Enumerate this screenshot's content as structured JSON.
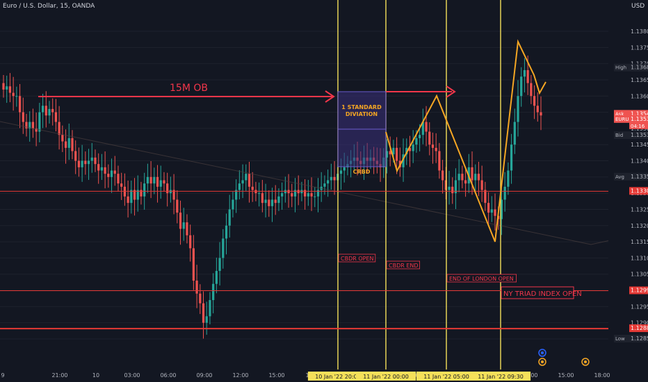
{
  "symbol_title": "Euro / U.S. Dollar, 15, OANDA",
  "currency": "USD",
  "colors": {
    "background": "#131722",
    "up": "#26a69a",
    "down": "#ef5350",
    "yellow_line": "#f5e05a",
    "red_line": "#e53935",
    "arrow": "#f2364a",
    "purple_box": "#3a2f7a",
    "orange": "#f5a623",
    "axis_text": "#b2b5be",
    "grid": "#1e222d"
  },
  "chart_data": {
    "type": "candlestick",
    "title": "Euro / U.S. Dollar, 15, OANDA",
    "ylim": [
      1.1275,
      1.1385
    ],
    "ytick_values": [
      1.1285,
      1.129,
      1.1295,
      1.13,
      1.1305,
      1.131,
      1.1315,
      1.132,
      1.1325,
      1.133,
      1.1335,
      1.134,
      1.1345,
      1.135,
      1.1355,
      1.136,
      1.1365,
      1.137,
      1.1375,
      1.138
    ],
    "ytick_labels": [
      "1.12850",
      "1.12900",
      "1.12950",
      "1.13000",
      "1.13050",
      "1.13100",
      "1.13150",
      "1.13200",
      "1.13250",
      "1.13300",
      "1.13350",
      "1.13400",
      "1.13450",
      "1.13500",
      "1.13550",
      "1.13600",
      "1.13650",
      "1.13700",
      "1.13750",
      "1.13800"
    ],
    "xtick_labels": [
      "9",
      "21:00",
      "10",
      "03:00",
      "06:00",
      "09:00",
      "12:00",
      "15:00",
      "18:00",
      "03:00",
      "12:00",
      "15:00",
      "18:00"
    ],
    "price_tags": [
      {
        "label": "High",
        "value": "1.13687",
        "price": 1.13687,
        "bg": "#1e222d",
        "fg": "#b2b5be"
      },
      {
        "label": "Ask",
        "value": "1.13544",
        "price": 1.13544,
        "bg": "#ef5350",
        "fg": "#ffffff"
      },
      {
        "label": "EURUSD",
        "value": "1.13538",
        "price": 1.13528,
        "bg": "#ef5350",
        "fg": "#ffffff",
        "sub": "04:16"
      },
      {
        "label": "Bid",
        "value": "1.13531",
        "price": 1.13478,
        "bg": "#1e222d",
        "fg": "#b2b5be"
      },
      {
        "label": "Avg",
        "value": "1.13350",
        "price": 1.1335,
        "bg": "#1e222d",
        "fg": "#b2b5be"
      },
      {
        "label": "",
        "value": "1.13306",
        "price": 1.13306,
        "bg": "#e53935",
        "fg": "#ffffff"
      },
      {
        "label": "",
        "value": "1.12999",
        "price": 1.12999,
        "bg": "#e53935",
        "fg": "#ffffff"
      },
      {
        "label": "",
        "value": "1.12882",
        "price": 1.12882,
        "bg": "#e53935",
        "fg": "#ffffff"
      },
      {
        "label": "Low",
        "value": "1.12850",
        "price": 1.1285,
        "bg": "#1e222d",
        "fg": "#b2b5be"
      }
    ],
    "horizontal_lines": [
      1.13306,
      1.12999,
      1.12882
    ],
    "session_lines": [
      {
        "axis_label": "10 Jan '22  20:00",
        "text": "CBDR OPEN"
      },
      {
        "axis_label": "11 Jan '22  00:00",
        "text": "CBDR END"
      },
      {
        "axis_label": "11 Jan '22  05:00",
        "text": "END OF LONDON OPEN"
      },
      {
        "axis_label": "11 Jan '22  09:30",
        "text": "NY TRIAD INDEX OPEN"
      }
    ],
    "annotations": {
      "ob_label": "15M OB",
      "std_label": "1 STANDARD DIVIATION",
      "crbd_label": "CRBD"
    },
    "close_path": [
      1.1362,
      1.1363,
      1.1361,
      1.136,
      1.136,
      1.1355,
      1.1352,
      1.135,
      1.1352,
      1.135,
      1.1349,
      1.1355,
      1.1357,
      1.1354,
      1.1356,
      1.1355,
      1.1352,
      1.1348,
      1.1346,
      1.1344,
      1.1347,
      1.1343,
      1.134,
      1.1338,
      1.134,
      1.1339,
      1.134,
      1.1341,
      1.1339,
      1.1337,
      1.1338,
      1.1336,
      1.1335,
      1.1337,
      1.1336,
      1.1333,
      1.1332,
      1.1329,
      1.1327,
      1.1331,
      1.1328,
      1.1331,
      1.1329,
      1.1333,
      1.1335,
      1.1333,
      1.1335,
      1.1332,
      1.1334,
      1.1333,
      1.133,
      1.1331,
      1.1328,
      1.1324,
      1.1319,
      1.1321,
      1.1317,
      1.1313,
      1.1303,
      1.1299,
      1.1296,
      1.129,
      1.1292,
      1.1297,
      1.1302,
      1.1306,
      1.131,
      1.1316,
      1.132,
      1.1325,
      1.1328,
      1.1331,
      1.1333,
      1.1334,
      1.1336,
      1.1332,
      1.1331,
      1.133,
      1.133,
      1.1327,
      1.1328,
      1.1326,
      1.1328,
      1.1327,
      1.1329,
      1.133,
      1.1331,
      1.133,
      1.1329,
      1.1331,
      1.133,
      1.1331,
      1.1329,
      1.133,
      1.1329,
      1.1329,
      1.1331,
      1.1332,
      1.1333,
      1.1334,
      1.1335,
      1.1334,
      1.1336,
      1.1337,
      1.1338,
      1.1339,
      1.134,
      1.1341,
      1.134,
      1.1339,
      1.1341,
      1.134,
      1.1341,
      1.134,
      1.1339,
      1.1338,
      1.1341,
      1.1343,
      1.1342,
      1.1344,
      1.134,
      1.1338,
      1.1342,
      1.1344,
      1.1343,
      1.1345,
      1.1347,
      1.1348,
      1.1352,
      1.1349,
      1.1345,
      1.1344,
      1.1343,
      1.1337,
      1.1334,
      1.1331,
      1.1332,
      1.133,
      1.1334,
      1.1336,
      1.1334,
      1.1333,
      1.1338,
      1.1334,
      1.1336,
      1.1334,
      1.1331,
      1.1327,
      1.1324,
      1.1325,
      1.1323,
      1.1322,
      1.1328,
      1.1332,
      1.1337,
      1.1345,
      1.1352,
      1.136,
      1.1366,
      1.1368,
      1.1364,
      1.136,
      1.1357,
      1.1355,
      1.1354
    ]
  }
}
